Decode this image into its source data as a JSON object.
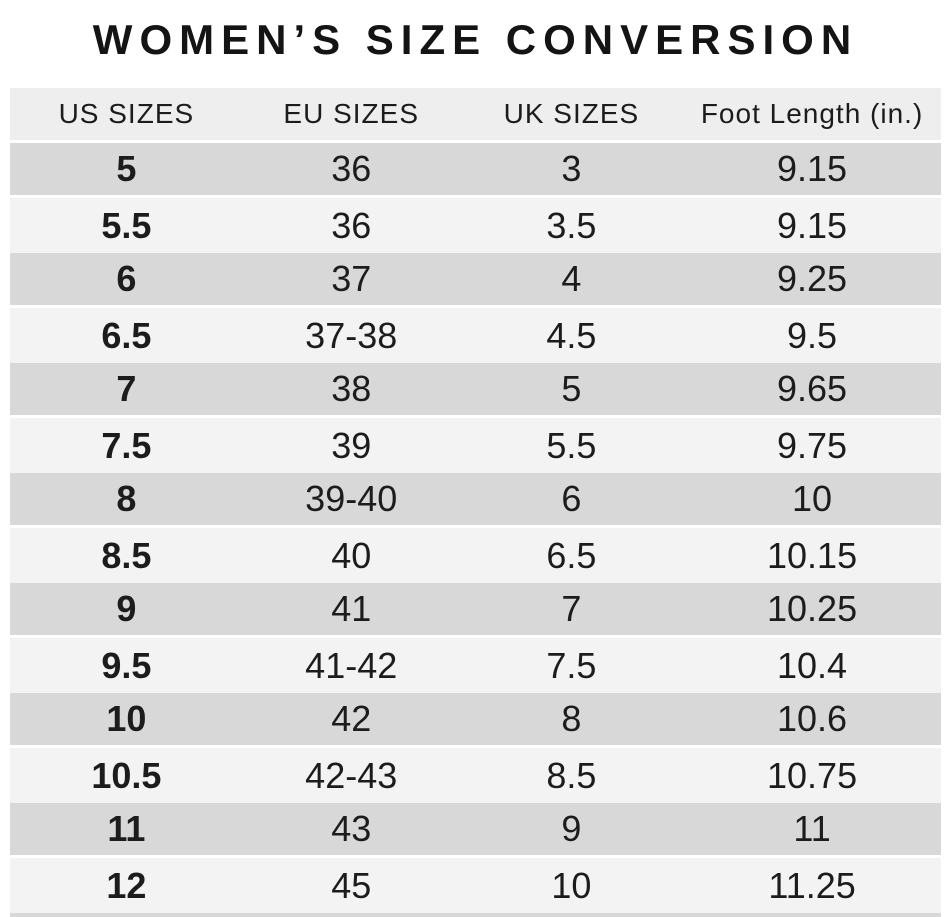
{
  "title": "WOMEN’S SIZE CONVERSION",
  "table": {
    "columns": [
      "US SIZES",
      "EU SIZES",
      "UK SIZES",
      "Foot Length (in.)"
    ],
    "rows": [
      [
        "5",
        "36",
        "3",
        "9.15"
      ],
      [
        "5.5",
        "36",
        "3.5",
        "9.15"
      ],
      [
        "6",
        "37",
        "4",
        "9.25"
      ],
      [
        "6.5",
        "37-38",
        "4.5",
        "9.5"
      ],
      [
        "7",
        "38",
        "5",
        "9.65"
      ],
      [
        "7.5",
        "39",
        "5.5",
        "9.75"
      ],
      [
        "8",
        "39-40",
        "6",
        "10"
      ],
      [
        "8.5",
        "40",
        "6.5",
        "10.15"
      ],
      [
        "9",
        "41",
        "7",
        "10.25"
      ],
      [
        "9.5",
        "41-42",
        "7.5",
        "10.4"
      ],
      [
        "10",
        "42",
        "8",
        "10.6"
      ],
      [
        "10.5",
        "42-43",
        "8.5",
        "10.75"
      ],
      [
        "11",
        "43",
        "9",
        "11"
      ],
      [
        "12",
        "45",
        "10",
        "11.25"
      ]
    ]
  },
  "colors": {
    "background": "#ffffff",
    "header_bg": "#efeeee",
    "row_dark": "#d9d8d8",
    "row_light": "#f4f3f3",
    "separator": "#ffffff",
    "text": "#1c1c1c",
    "title_color": "#141414"
  }
}
